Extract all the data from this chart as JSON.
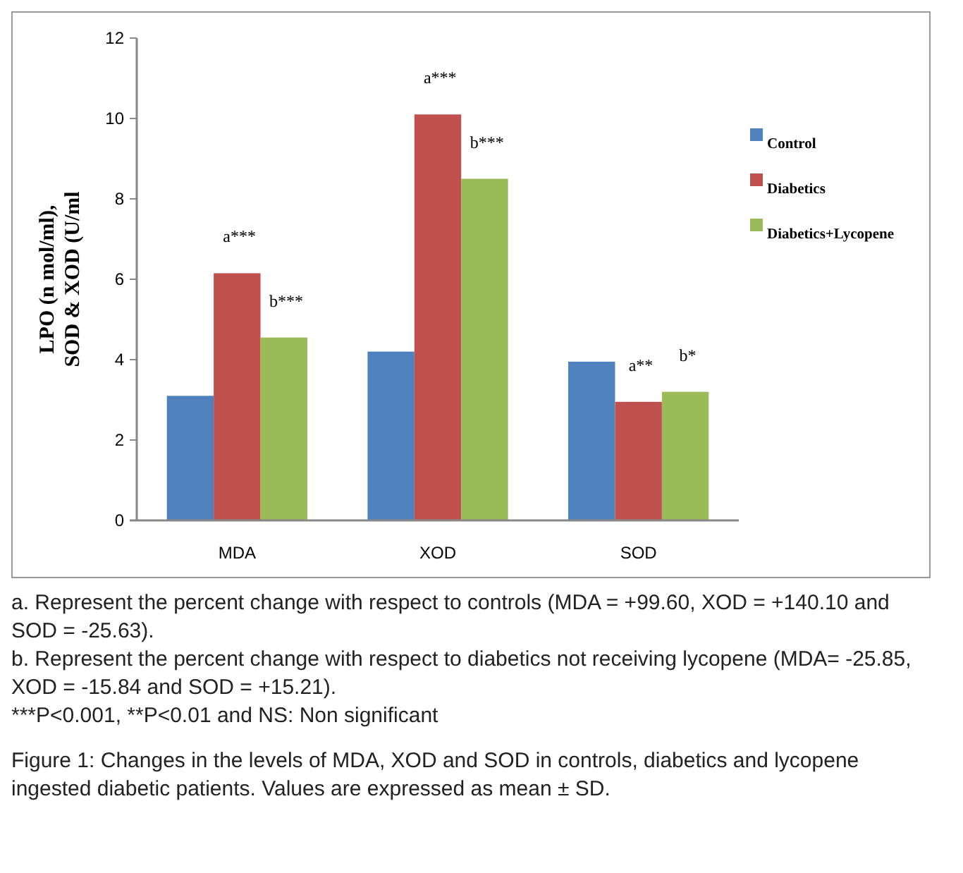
{
  "chart_data": {
    "type": "bar",
    "ylabel": "LPO (n mol/ml),\nSOD & XOD (U/ml",
    "categories": [
      "MDA",
      "XOD",
      "SOD"
    ],
    "series": [
      {
        "name": "Control",
        "color": "#4f81bd",
        "values": [
          3.1,
          4.2,
          3.95
        ]
      },
      {
        "name": "Diabetics",
        "color": "#c0504d",
        "values": [
          6.15,
          10.1,
          2.95
        ],
        "value_labels": [
          "a***",
          "a***",
          "a**"
        ]
      },
      {
        "name": "Diabetics+Lycopene",
        "color": "#9bbb59",
        "values": [
          4.55,
          8.5,
          3.2
        ],
        "value_labels": [
          "b***",
          "b***",
          "b*"
        ]
      }
    ],
    "ylim": [
      0,
      12
    ],
    "yticks": [
      0,
      2,
      4,
      6,
      8,
      10,
      12
    ],
    "grid": false,
    "legend": "right",
    "annotations": [
      "a. Represent the percent change with respect to controls (MDA = +99.60, XOD = +140.10 and SOD = -25.63).",
      "b. Represent the percent change with respect to diabetics not receiving lycopene (MDA= -25.85,  XOD = -15.84 and  SOD = +15.21).",
      "***P<0.001, **P<0.01 and NS: Non significant",
      "Figure 1: Changes in the levels of MDA, XOD and SOD in controls, diabetics and lycopene ingested diabetic patients. Values are expressed as mean ± SD."
    ]
  }
}
